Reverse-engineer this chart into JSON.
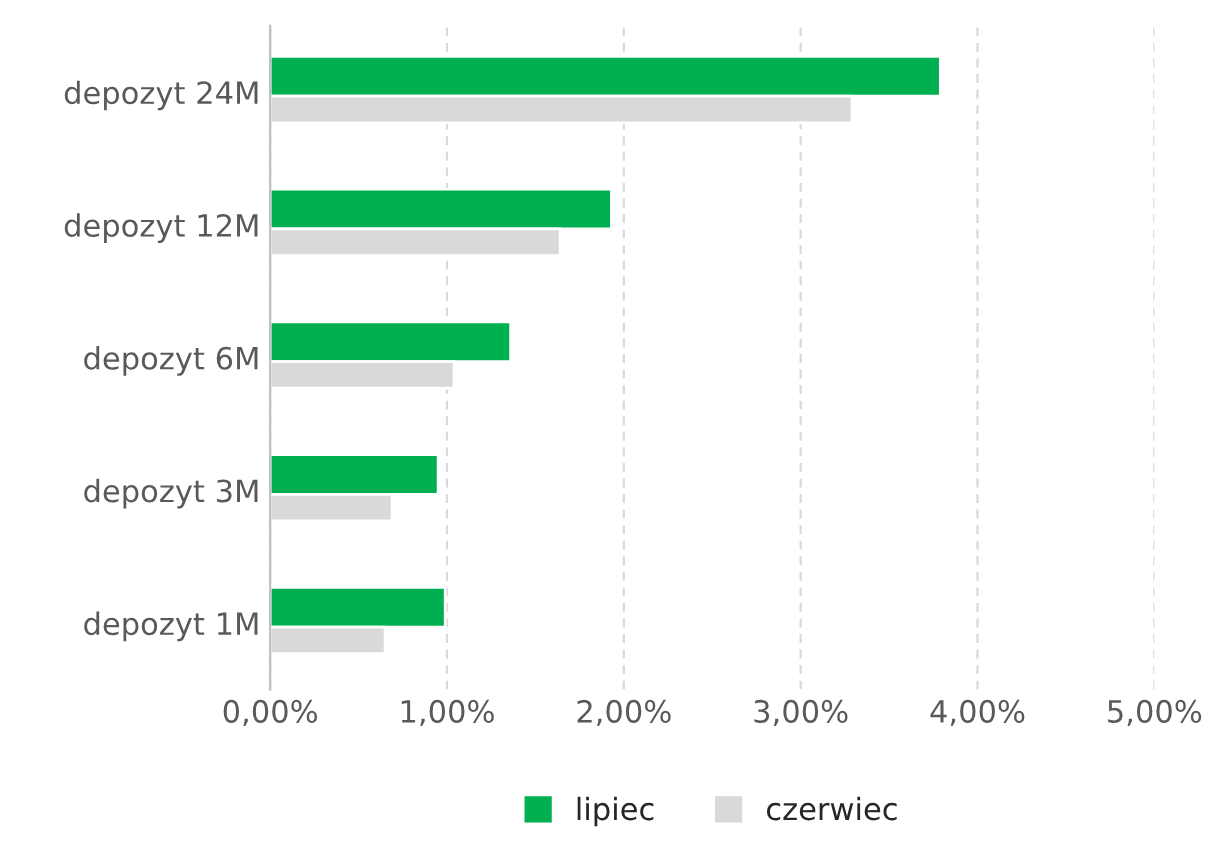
{
  "chart_data": {
    "type": "bar",
    "orientation": "horizontal",
    "categories": [
      "depozyt 24M",
      "depozyt 12M",
      "depozyt 6M",
      "depozyt 3M",
      "depozyt 1M"
    ],
    "series": [
      {
        "name": "lipiec",
        "color": "#00b050",
        "values": [
          3.79,
          1.93,
          1.36,
          0.95,
          0.99
        ]
      },
      {
        "name": "czerwiec",
        "color": "#d9d9d9",
        "values": [
          3.29,
          1.64,
          1.04,
          0.69,
          0.65
        ]
      }
    ],
    "xlim": [
      0,
      5
    ],
    "xticks": [
      {
        "value": 0,
        "label": "0,00%"
      },
      {
        "value": 1,
        "label": "1,00%"
      },
      {
        "value": 2,
        "label": "2,00%"
      },
      {
        "value": 3,
        "label": "3,00%"
      },
      {
        "value": 4,
        "label": "4,00%"
      },
      {
        "value": 5,
        "label": "5,00%"
      }
    ],
    "grid": "x",
    "legend": "bottom"
  }
}
